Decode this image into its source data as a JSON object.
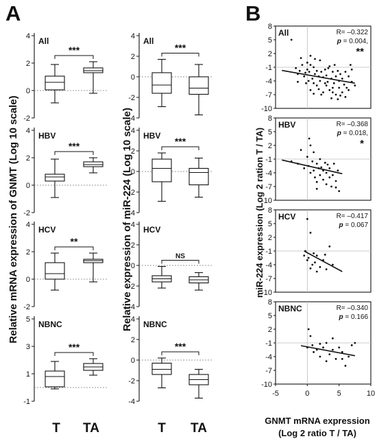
{
  "panel_labels": {
    "a": "A",
    "b": "B"
  },
  "box_group_labels": [
    "T",
    "TA"
  ],
  "chart_data": [
    {
      "type": "box",
      "ylabel": "Relative  mRNA expression of GNMT (Log 10 scale)",
      "categories": [
        "T",
        "TA"
      ],
      "panels": [
        {
          "label": "All",
          "ylim": [
            -2,
            4
          ],
          "yticks": [
            "-2",
            "0",
            "2",
            "4"
          ],
          "significance": "***",
          "boxes": [
            {
              "whisker_low": -0.9,
              "q1": 0.05,
              "median": 0.6,
              "q3": 1.05,
              "whisker_high": 1.9
            },
            {
              "whisker_low": -0.2,
              "q1": 1.3,
              "median": 1.45,
              "q3": 1.65,
              "whisker_high": 2.1
            }
          ]
        },
        {
          "label": "HBV",
          "ylim": [
            -2,
            4
          ],
          "yticks": [
            "-2",
            "0",
            "2",
            "4"
          ],
          "significance": "***",
          "boxes": [
            {
              "whisker_low": -0.9,
              "q1": 0.3,
              "median": 0.6,
              "q3": 0.8,
              "whisker_high": 1.9
            },
            {
              "whisker_low": 0.9,
              "q1": 1.35,
              "median": 1.5,
              "q3": 1.7,
              "whisker_high": 2.0
            }
          ]
        },
        {
          "label": "HCV",
          "ylim": [
            -2,
            4
          ],
          "yticks": [
            "-2",
            "0",
            "2",
            "4"
          ],
          "significance": "**",
          "boxes": [
            {
              "whisker_low": -0.8,
              "q1": 0.0,
              "median": 0.4,
              "q3": 1.2,
              "whisker_high": 1.9
            },
            {
              "whisker_low": -0.2,
              "q1": 1.2,
              "median": 1.35,
              "q3": 1.45,
              "whisker_high": 1.9
            }
          ]
        },
        {
          "label": "NBNC",
          "ylim": [
            -1,
            5
          ],
          "yticks": [
            "-1",
            "1",
            "3",
            "5"
          ],
          "significance": "***",
          "boxes": [
            {
              "whisker_low": -0.1,
              "q1": 0.05,
              "median": 0.8,
              "q3": 1.2,
              "whisker_high": 1.9
            },
            {
              "whisker_low": 0.9,
              "q1": 1.25,
              "median": 1.5,
              "q3": 1.75,
              "whisker_high": 2.1
            }
          ]
        }
      ]
    },
    {
      "type": "box",
      "ylabel": "Relative expression of miR-224 (Log 10 scale)",
      "categories": [
        "T",
        "TA"
      ],
      "panels": [
        {
          "label": "All",
          "ylim": [
            -4,
            4
          ],
          "yticks": [
            "-4",
            "-2",
            "0",
            "2",
            "4"
          ],
          "significance": "***",
          "boxes": [
            {
              "whisker_low": -2.9,
              "q1": -1.6,
              "median": -0.8,
              "q3": 0.4,
              "whisker_high": 1.7
            },
            {
              "whisker_low": -3.7,
              "q1": -1.7,
              "median": -1.1,
              "q3": 0.0,
              "whisker_high": 1.2
            }
          ]
        },
        {
          "label": "HBV",
          "ylim": [
            -4,
            4
          ],
          "yticks": [
            "-4",
            "-2",
            "0",
            "2",
            "4"
          ],
          "significance": "***",
          "boxes": [
            {
              "whisker_low": -2.9,
              "q1": -1.0,
              "median": 0.3,
              "q3": 1.2,
              "whisker_high": 1.8
            },
            {
              "whisker_low": -2.5,
              "q1": -1.3,
              "median": -0.1,
              "q3": 0.3,
              "whisker_high": 1.3
            }
          ]
        },
        {
          "label": "HCV",
          "ylim": [
            -4,
            4
          ],
          "yticks": [
            "-4",
            "-2",
            "0",
            "2",
            "4"
          ],
          "significance": "NS",
          "boxes": [
            {
              "whisker_low": -2.2,
              "q1": -1.6,
              "median": -1.3,
              "q3": -1.0,
              "whisker_high": -0.1
            },
            {
              "whisker_low": -2.4,
              "q1": -1.7,
              "median": -1.4,
              "q3": -1.1,
              "whisker_high": -0.7
            }
          ]
        },
        {
          "label": "NBNC",
          "ylim": [
            -4,
            4
          ],
          "yticks": [
            "-4",
            "-2",
            "0",
            "2",
            "4"
          ],
          "significance": "***",
          "boxes": [
            {
              "whisker_low": -2.7,
              "q1": -1.4,
              "median": -0.9,
              "q3": -0.3,
              "whisker_high": 0.2
            },
            {
              "whisker_low": -3.7,
              "q1": -2.4,
              "median": -1.9,
              "q3": -1.4,
              "whisker_high": -0.9
            }
          ]
        }
      ]
    },
    {
      "type": "scatter",
      "ylabel": "miR-224 expression (Log 2 ration T / TA)",
      "xlabel": "GNMT mRNA expression",
      "xlabel2": "(Log 2 ratio T / TA)",
      "xlim": [
        -5,
        10
      ],
      "xticks": [
        "-5",
        "0",
        "5",
        "10"
      ],
      "ylim": [
        -10,
        8
      ],
      "yticks": [
        "8",
        "5",
        "2",
        "-1",
        "-4",
        "-7",
        "-10"
      ],
      "panels": [
        {
          "label": "All",
          "r": "R= –0.322",
          "p_label": "p",
          "p_value": " = 0.004,",
          "stars": "**",
          "fit": {
            "x": [
              -4,
              7.5
            ],
            "y": [
              -1.7,
              -4.5
            ]
          },
          "points": [
            [
              -2.5,
              5
            ],
            [
              -1.8,
              -1.2
            ],
            [
              -1.5,
              -2.5
            ],
            [
              -1.2,
              -1.8
            ],
            [
              -1,
              1
            ],
            [
              -0.8,
              -0.5
            ],
            [
              -0.5,
              -3
            ],
            [
              -0.3,
              -2.2
            ],
            [
              0,
              0
            ],
            [
              0,
              -1.5
            ],
            [
              0.2,
              -4
            ],
            [
              0.3,
              -2
            ],
            [
              0.5,
              -0.5
            ],
            [
              0.5,
              -6
            ],
            [
              0.8,
              -3.5
            ],
            [
              1,
              -1
            ],
            [
              1,
              -4.5
            ],
            [
              1.2,
              -2.5
            ],
            [
              1.5,
              -5
            ],
            [
              1.5,
              -1.8
            ],
            [
              1.8,
              -3
            ],
            [
              2,
              0.5
            ],
            [
              2,
              -4
            ],
            [
              2.2,
              -2
            ],
            [
              2.5,
              -6.5
            ],
            [
              2.5,
              -3.2
            ],
            [
              2.8,
              -1.5
            ],
            [
              3,
              -5
            ],
            [
              3,
              -2.8
            ],
            [
              3.2,
              -4.2
            ],
            [
              3.5,
              -0.8
            ],
            [
              3.5,
              -6
            ],
            [
              3.8,
              -3.5
            ],
            [
              4,
              -2
            ],
            [
              4,
              -5.5
            ],
            [
              4.2,
              -4.5
            ],
            [
              4.5,
              -3
            ],
            [
              4.5,
              -7
            ],
            [
              4.8,
              -1.8
            ],
            [
              5,
              -4
            ],
            [
              5,
              -5.5
            ],
            [
              5.2,
              -2.5
            ],
            [
              5.5,
              -6.5
            ],
            [
              5.5,
              -3.5
            ],
            [
              5.8,
              -4.8
            ],
            [
              6,
              -2
            ],
            [
              6,
              -7.5
            ],
            [
              6.2,
              -5.5
            ],
            [
              6.5,
              -3
            ],
            [
              6.5,
              -6
            ],
            [
              7,
              -4.2
            ],
            [
              7,
              -1.5
            ],
            [
              7.5,
              -5
            ],
            [
              0.5,
              1.5
            ],
            [
              1.2,
              0.8
            ],
            [
              -0.2,
              -4.5
            ],
            [
              2.2,
              -7
            ],
            [
              3.8,
              -7.8
            ],
            [
              4.8,
              -8
            ],
            [
              1.8,
              -5.8
            ],
            [
              2.8,
              -4.5
            ],
            [
              3.3,
              -1.2
            ],
            [
              4.3,
              -0.5
            ],
            [
              1,
              -6.8
            ],
            [
              -1.5,
              -4.2
            ],
            [
              6.8,
              -0.5
            ],
            [
              5.2,
              -7.2
            ],
            [
              4,
              -6.5
            ]
          ]
        },
        {
          "label": "HBV",
          "r": "R= –0.368",
          "p_label": "p",
          "p_value": " = 0.018,",
          "stars": "*",
          "fit": {
            "x": [
              -4,
              5.5
            ],
            "y": [
              -1.2,
              -4.2
            ]
          },
          "points": [
            [
              -2.5,
              -1.5
            ],
            [
              -1.5,
              -2
            ],
            [
              -1,
              1
            ],
            [
              -0.5,
              -3
            ],
            [
              0,
              -0.5
            ],
            [
              0.2,
              -2.5
            ],
            [
              0.5,
              2
            ],
            [
              0.5,
              -4
            ],
            [
              0.8,
              -1.5
            ],
            [
              1,
              0.5
            ],
            [
              1,
              -3.5
            ],
            [
              1.2,
              -5
            ],
            [
              1.5,
              -2
            ],
            [
              1.5,
              -6
            ],
            [
              1.8,
              -3
            ],
            [
              2,
              -1
            ],
            [
              2,
              -4.5
            ],
            [
              2.2,
              -2.8
            ],
            [
              2.5,
              -5.5
            ],
            [
              2.5,
              -3.5
            ],
            [
              2.8,
              -1.8
            ],
            [
              3,
              -6.5
            ],
            [
              3,
              -4
            ],
            [
              3.2,
              -2.2
            ],
            [
              3.5,
              -5
            ],
            [
              3.5,
              -3
            ],
            [
              3.8,
              -7
            ],
            [
              4,
              -4.5
            ],
            [
              4.2,
              -2
            ],
            [
              4.5,
              -5.8
            ],
            [
              4.8,
              -3.5
            ],
            [
              5,
              -8
            ],
            [
              0.3,
              3.5
            ],
            [
              1.5,
              -7.5
            ],
            [
              4.5,
              -7.2
            ]
          ]
        },
        {
          "label": "HCV",
          "r": "R= –0.417",
          "p_label": "p",
          "p_value": " = 0.067",
          "stars": "",
          "fit": {
            "x": [
              -0.5,
              5.5
            ],
            "y": [
              -1,
              -5.5
            ]
          },
          "points": [
            [
              -0.5,
              -2
            ],
            [
              -0.3,
              -1
            ],
            [
              0,
              6
            ],
            [
              0,
              -3
            ],
            [
              0.2,
              -2.5
            ],
            [
              0.5,
              3
            ],
            [
              0.8,
              -4
            ],
            [
              1,
              -1.5
            ],
            [
              1.2,
              -3.5
            ],
            [
              1.5,
              -2
            ],
            [
              2,
              -4.5
            ],
            [
              2.5,
              -3
            ],
            [
              3,
              -5
            ],
            [
              3.5,
              0
            ],
            [
              4,
              -4
            ],
            [
              1.5,
              -5.5
            ],
            [
              0.5,
              -4.8
            ],
            [
              2.8,
              -1.8
            ]
          ]
        },
        {
          "label": "NBNC",
          "r": "R= –0.340",
          "p_label": "p",
          "p_value": " = 0.166",
          "stars": "",
          "fit": {
            "x": [
              -1,
              7.5
            ],
            "y": [
              -1.6,
              -3.8
            ]
          },
          "points": [
            [
              0,
              -2
            ],
            [
              0.2,
              2
            ],
            [
              0.5,
              0.5
            ],
            [
              0.8,
              -1.5
            ],
            [
              1,
              -3
            ],
            [
              1.5,
              -2.5
            ],
            [
              2,
              -4
            ],
            [
              2.5,
              -2
            ],
            [
              3,
              -5
            ],
            [
              3,
              -1
            ],
            [
              3.5,
              -3.5
            ],
            [
              4,
              -2.5
            ],
            [
              4.5,
              -4.5
            ],
            [
              5,
              -2
            ],
            [
              5.5,
              -3
            ],
            [
              6,
              -6
            ],
            [
              6.5,
              -4
            ],
            [
              7,
              -1.5
            ],
            [
              7.5,
              -1
            ],
            [
              4,
              0
            ],
            [
              5.5,
              -4.5
            ],
            [
              2,
              -1.2
            ]
          ]
        }
      ]
    }
  ]
}
